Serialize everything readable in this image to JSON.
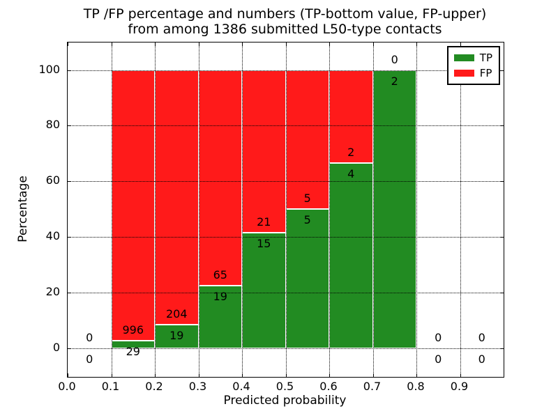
{
  "title": {
    "line1": "TP /FP percentage and numbers (TP-bottom value, FP-upper)",
    "line2": "from among 1386 submitted L50-type contacts"
  },
  "axes": {
    "xlabel": "Predicted probability",
    "ylabel": "Percentage",
    "xticks": [
      {
        "value": 0.0,
        "label": "0.0"
      },
      {
        "value": 0.1,
        "label": "0.1"
      },
      {
        "value": 0.2,
        "label": "0.2"
      },
      {
        "value": 0.3,
        "label": "0.3"
      },
      {
        "value": 0.4,
        "label": "0.4"
      },
      {
        "value": 0.5,
        "label": "0.5"
      },
      {
        "value": 0.6,
        "label": "0.6"
      },
      {
        "value": 0.7,
        "label": "0.7"
      },
      {
        "value": 0.8,
        "label": "0.8"
      },
      {
        "value": 0.9,
        "label": "0.9"
      }
    ],
    "yticks": [
      {
        "value": 0,
        "label": "0"
      },
      {
        "value": 20,
        "label": "20"
      },
      {
        "value": 40,
        "label": "40"
      },
      {
        "value": 60,
        "label": "60"
      },
      {
        "value": 80,
        "label": "80"
      },
      {
        "value": 100,
        "label": "100"
      }
    ]
  },
  "legend": [
    {
      "label": "TP",
      "color": "#228b22"
    },
    {
      "label": "FP",
      "color": "#ff1a1a"
    }
  ],
  "chart_data": {
    "type": "bar",
    "stacked": true,
    "normalized_to_percent": true,
    "title": "TP /FP percentage and numbers (TP-bottom value, FP-upper) from among 1386 submitted L50-type contacts",
    "xlabel": "Predicted probability",
    "ylabel": "Percentage",
    "xlim": [
      0.0,
      1.0
    ],
    "ylim": [
      -10.5,
      110
    ],
    "grid": true,
    "grid_style": "dotted",
    "legend_position": "upper right",
    "total_contacts": 1386,
    "colors": {
      "tp": "#228b22",
      "fp": "#ff1a1a",
      "bar_edge": "#ffffff"
    },
    "bins": [
      {
        "range": [
          0.0,
          0.1
        ],
        "tp": 0,
        "fp": 0
      },
      {
        "range": [
          0.1,
          0.2
        ],
        "tp": 29,
        "fp": 996
      },
      {
        "range": [
          0.2,
          0.3
        ],
        "tp": 19,
        "fp": 204
      },
      {
        "range": [
          0.3,
          0.4
        ],
        "tp": 19,
        "fp": 65
      },
      {
        "range": [
          0.4,
          0.5
        ],
        "tp": 15,
        "fp": 21
      },
      {
        "range": [
          0.5,
          0.6
        ],
        "tp": 5,
        "fp": 5
      },
      {
        "range": [
          0.6,
          0.7
        ],
        "tp": 4,
        "fp": 2
      },
      {
        "range": [
          0.7,
          0.8
        ],
        "tp": 2,
        "fp": 0
      },
      {
        "range": [
          0.8,
          0.9
        ],
        "tp": 0,
        "fp": 0
      },
      {
        "range": [
          0.9,
          1.0
        ],
        "tp": 0,
        "fp": 0
      }
    ],
    "series": [
      {
        "name": "TP",
        "color": "#228b22",
        "counts": [
          0,
          29,
          19,
          19,
          15,
          5,
          4,
          2,
          0,
          0
        ]
      },
      {
        "name": "FP",
        "color": "#ff1a1a",
        "counts": [
          0,
          996,
          204,
          65,
          21,
          5,
          2,
          0,
          0,
          0
        ]
      }
    ]
  }
}
